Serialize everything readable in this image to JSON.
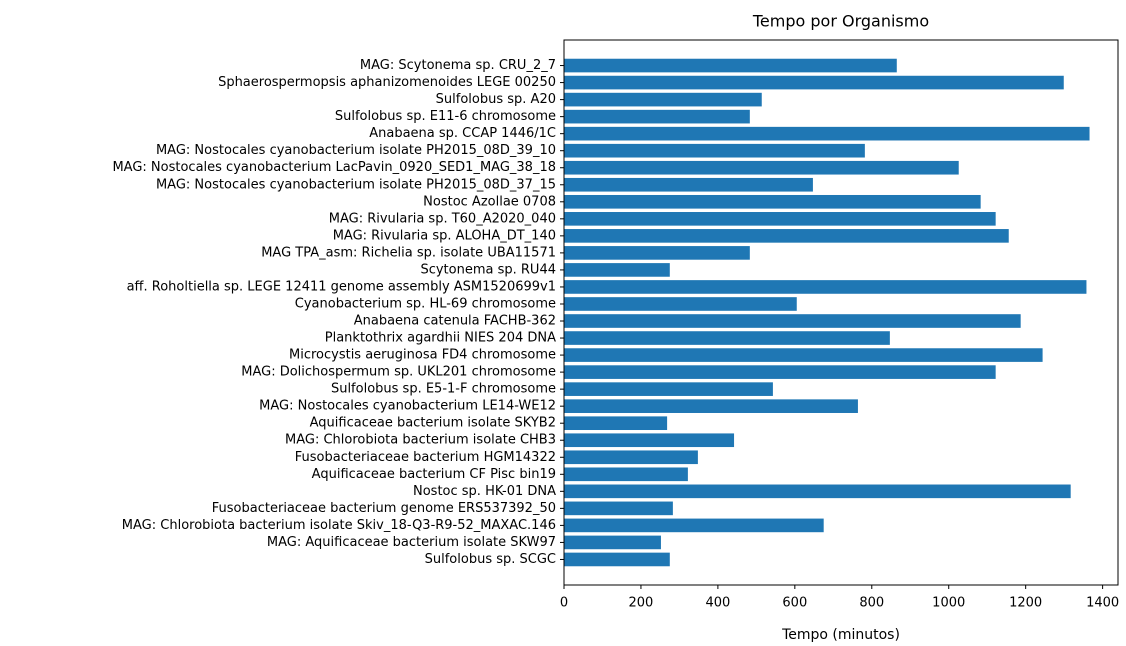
{
  "chart_data": {
    "type": "barh",
    "title": "Tempo por Organismo",
    "xlabel": "Tempo (minutos)",
    "color": "#1f77b4",
    "categories": [
      "MAG: Scytonema sp. CRU_2_7",
      "Sphaerospermopsis aphanizomenoides LEGE 00250",
      "Sulfolobus sp. A20",
      "Sulfolobus sp. E11-6 chromosome",
      "Anabaena sp. CCAP 1446/1C",
      "MAG: Nostocales cyanobacterium isolate PH2015_08D_39_10",
      "MAG: Nostocales cyanobacterium LacPavin_0920_SED1_MAG_38_18",
      "MAG: Nostocales cyanobacterium isolate PH2015_08D_37_15",
      "Nostoc Azollae 0708",
      "MAG: Rivularia sp. T60_A2020_040",
      "MAG: Rivularia sp. ALOHA_DT_140",
      "MAG TPA_asm: Richelia sp. isolate UBA11571",
      "Scytonema sp. RU44",
      "aff. Roholtiella sp. LEGE 12411 genome assembly ASM1520699v1",
      "Cyanobacterium sp. HL-69 chromosome",
      "Anabaena catenula FACHB-362",
      "Planktothrix agardhii NIES 204 DNA",
      "Microcystis aeruginosa FD4 chromosome",
      "MAG: Dolichospermum sp. UKL201 chromosome",
      "Sulfolobus sp. E5-1-F chromosome",
      "MAG: Nostocales cyanobacterium LE14-WE12",
      "Aquificaceae bacterium isolate SKYB2",
      "MAG: Chlorobiota bacterium isolate CHB3",
      "Fusobacteriaceae bacterium HGM14322",
      "Aquificaceae bacterium CF Pisc bin19",
      "Nostoc sp. HK-01 DNA",
      "Fusobacteriaceae bacterium genome ERS537392_50",
      "MAG: Chlorobiota bacterium isolate Skiv_18-Q3-R9-52_MAXAC.146",
      "MAG: Aquificaceae bacterium isolate SKW97",
      "Sulfolobus sp. SCGC"
    ],
    "values": [
      865,
      1299,
      514,
      483,
      1366,
      782,
      1026,
      647,
      1083,
      1122,
      1156,
      483,
      275,
      1358,
      605,
      1187,
      847,
      1244,
      1122,
      543,
      764,
      268,
      442,
      348,
      322,
      1317,
      283,
      675,
      252,
      275
    ],
    "xlim": [
      0,
      1440
    ],
    "xticks": [
      0,
      200,
      400,
      600,
      800,
      1000,
      1200,
      1400
    ]
  }
}
